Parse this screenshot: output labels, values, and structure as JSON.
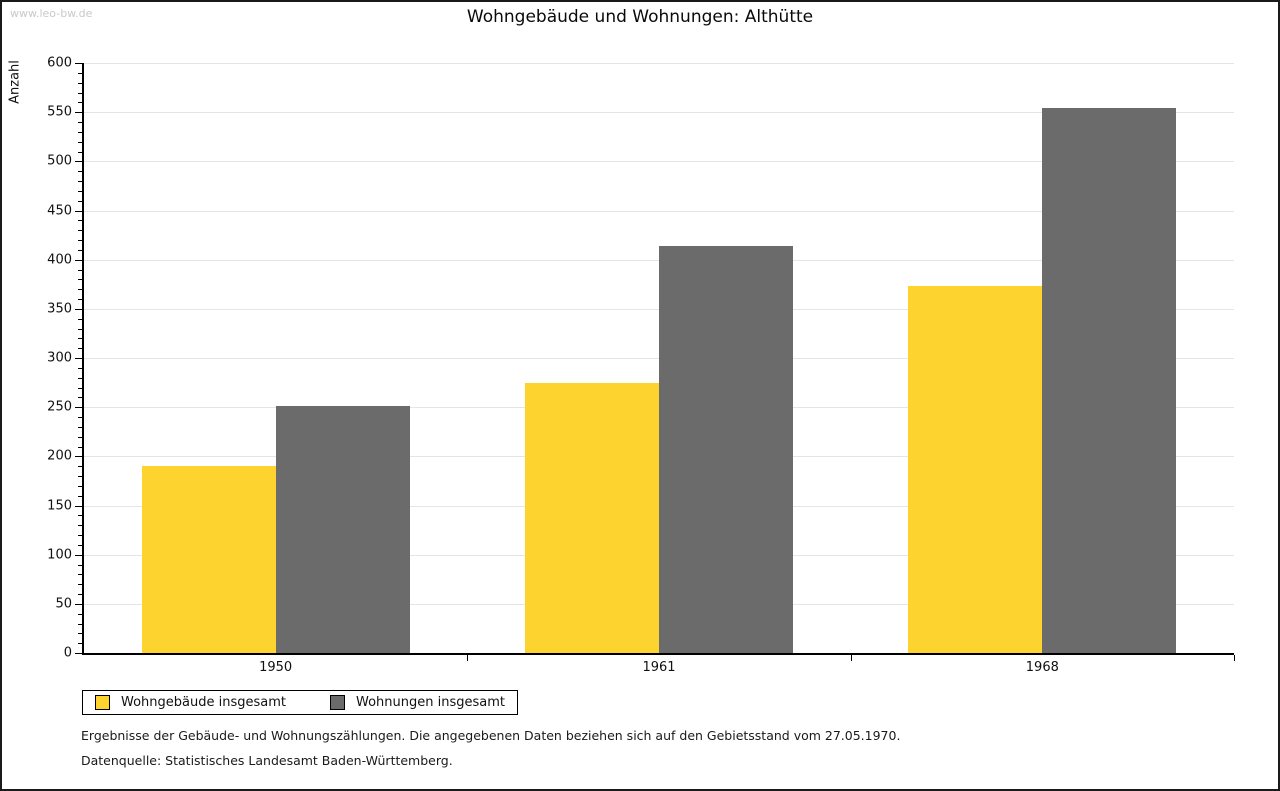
{
  "watermark": "www.leo-bw.de",
  "title": "Wohngebäude und Wohnungen: Althütte",
  "chart_data": {
    "type": "bar",
    "title": "Wohngebäude und Wohnungen: Althütte",
    "categories": [
      "1950",
      "1961",
      "1968"
    ],
    "series": [
      {
        "name": "Wohngebäude insgesamt",
        "color": "#FDD32F",
        "values": [
          190,
          275,
          373
        ]
      },
      {
        "name": "Wohnungen insgesamt",
        "color": "#6B6B6B",
        "values": [
          251,
          414,
          554
        ]
      }
    ],
    "ylabel": "Anzahl",
    "ylim": [
      0,
      600
    ],
    "ytick_step": 50,
    "yminor_step": 10,
    "grid": true,
    "legend_position": "bottom-left"
  },
  "footnotes": {
    "line1": "Ergebnisse der Gebäude- und Wohnungszählungen. Die angegebenen Daten beziehen sich auf den Gebietsstand vom 27.05.1970.",
    "line2": "Datenquelle: Statistisches Landesamt Baden-Württemberg."
  }
}
